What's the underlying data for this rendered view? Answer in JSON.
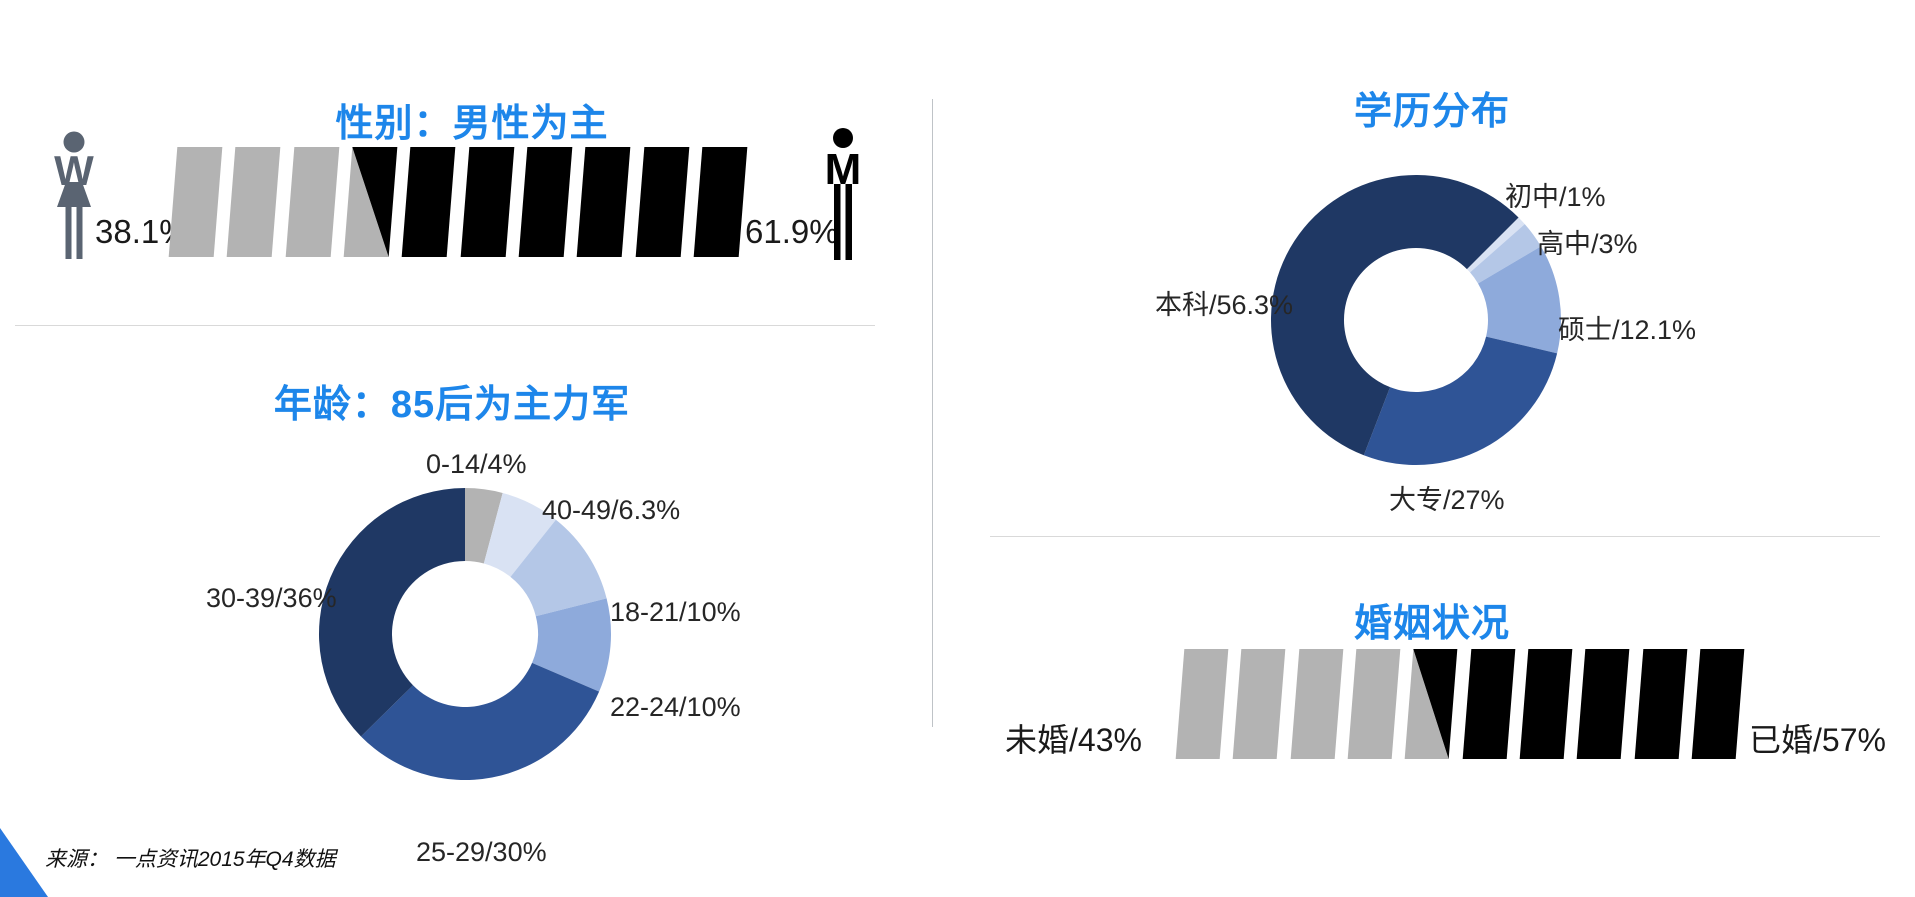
{
  "accent_color": "#1D86EA",
  "corner_triangle_color": "#2A79DF",
  "source": "来源： 一点资讯2015年Q4数据",
  "sections": {
    "gender": {
      "title": "性别：男性为主",
      "female_value": "38.1%",
      "male_value": "61.9%"
    },
    "age": {
      "title": "年龄：85后为主力军"
    },
    "education": {
      "title": "学历分布"
    },
    "marriage": {
      "title": "婚姻状况",
      "left_label": "未婚/43%",
      "right_label": "已婚/57%"
    }
  },
  "chart_data": [
    {
      "id": "gender",
      "type": "bar",
      "subtype": "pictogram-slant-bars",
      "title": "性别：男性为主",
      "categories": [
        "female",
        "male"
      ],
      "values": [
        38.1,
        61.9
      ],
      "unit": "%",
      "labels": [
        "38.1%",
        "61.9%"
      ],
      "colors": [
        "#B3B3B3",
        "#000000"
      ],
      "icon_color_female": "#5A6472",
      "icon_color_male": "#000000",
      "bar_pattern": {
        "total": 10,
        "gray": 3,
        "split": 1,
        "black": 6
      }
    },
    {
      "id": "age",
      "type": "pie",
      "subtype": "donut",
      "title": "年龄：85后为主力军",
      "categories": [
        "0-14",
        "40-49",
        "18-21",
        "22-24",
        "25-29",
        "30-39"
      ],
      "values": [
        4,
        6.3,
        10,
        10,
        30,
        36
      ],
      "labels": [
        "0-14/4%",
        "40-49/6.3%",
        "18-21/10%",
        "22-24/10%",
        "25-29/30%",
        "30-39/36%"
      ],
      "colors": [
        "#B3B3B3",
        "#D9E2F3",
        "#B4C7E7",
        "#8EAADB",
        "#2F5496",
        "#1F3864"
      ],
      "start_angle": 0,
      "legend": false
    },
    {
      "id": "education",
      "type": "pie",
      "subtype": "donut",
      "title": "学历分布",
      "categories": [
        "初中",
        "高中",
        "硕士",
        "大专",
        "本科"
      ],
      "values": [
        1,
        3,
        12.1,
        27,
        56.3
      ],
      "labels": [
        "初中/1%",
        "高中/3%",
        "硕士/12.1%",
        "大专/27%",
        "本科/56.3%"
      ],
      "colors": [
        "#D9E2F3",
        "#B4C7E7",
        "#8EAADB",
        "#2F5496",
        "#1F3864"
      ],
      "start_angle": 45,
      "legend": false
    },
    {
      "id": "marriage",
      "type": "bar",
      "subtype": "pictogram-slant-bars",
      "title": "婚姻状况",
      "categories": [
        "未婚",
        "已婚"
      ],
      "values": [
        43,
        57
      ],
      "unit": "%",
      "labels": [
        "未婚/43%",
        "已婚/57%"
      ],
      "colors": [
        "#B3B3B3",
        "#000000"
      ],
      "bar_pattern": {
        "total": 10,
        "gray": 4,
        "split": 1,
        "black": 5
      }
    }
  ]
}
